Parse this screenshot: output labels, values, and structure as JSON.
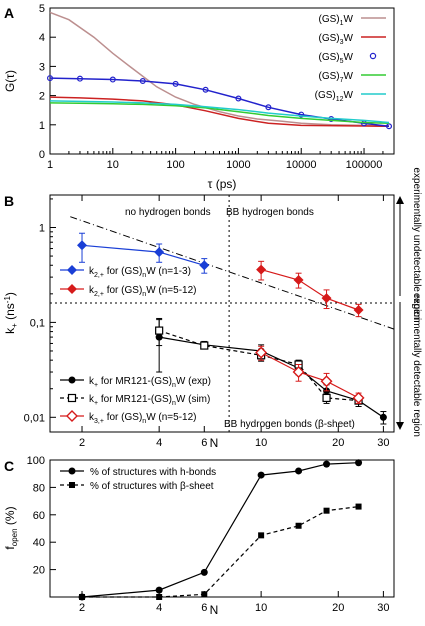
{
  "chart_data": [
    {
      "panel": "A",
      "type": "line",
      "xlabel": "τ (ps)",
      "ylabel": "G(τ)",
      "xscale": "log",
      "xlim": [
        1,
        300000
      ],
      "ylim": [
        0,
        5
      ],
      "x_ticks": [
        "1",
        "10",
        "100",
        "1000",
        "10000",
        "100000"
      ],
      "y_ticks": [
        "0",
        "1",
        "2",
        "3",
        "4",
        "5"
      ],
      "legend_position": "top-right",
      "series": [
        {
          "name": "(GS)1W",
          "name_base": "(GS)",
          "name_sub": "1",
          "name_tail": "W",
          "color": "#bc8f8f",
          "style": "line",
          "x": [
            1,
            2,
            5,
            10,
            20,
            50,
            100,
            200,
            500,
            1000,
            2000,
            5000,
            10000,
            30000,
            100000,
            250000
          ],
          "y": [
            4.85,
            4.6,
            4.0,
            3.45,
            2.95,
            2.3,
            1.95,
            1.7,
            1.45,
            1.3,
            1.2,
            1.12,
            1.05,
            1.0,
            0.98,
            0.97
          ]
        },
        {
          "name": "(GS)3W",
          "name_base": "(GS)",
          "name_sub": "3",
          "name_tail": "W",
          "color": "#cc2222",
          "style": "line",
          "x": [
            1,
            3,
            10,
            30,
            100,
            300,
            1000,
            3000,
            10000,
            100000,
            250000
          ],
          "y": [
            1.95,
            1.92,
            1.88,
            1.82,
            1.68,
            1.48,
            1.22,
            1.05,
            0.98,
            0.96,
            0.95
          ]
        },
        {
          "name": "(GS)5W",
          "name_base": "(GS)",
          "name_sub": "5",
          "name_tail": "W",
          "color": "#2222cc",
          "style": "circles+line",
          "x": [
            1,
            3,
            10,
            30,
            100,
            300,
            1000,
            3000,
            10000,
            30000,
            100000,
            250000
          ],
          "y": [
            2.6,
            2.58,
            2.55,
            2.5,
            2.4,
            2.2,
            1.9,
            1.6,
            1.35,
            1.2,
            1.05,
            0.95
          ]
        },
        {
          "name": "(GS)7W",
          "name_base": "(GS)",
          "name_sub": "7",
          "name_tail": "W",
          "color": "#33cc33",
          "style": "line",
          "x": [
            1,
            3,
            10,
            30,
            100,
            300,
            1000,
            3000,
            10000,
            30000,
            100000,
            250000
          ],
          "y": [
            1.75,
            1.74,
            1.72,
            1.7,
            1.65,
            1.58,
            1.45,
            1.32,
            1.22,
            1.15,
            1.08,
            1.05
          ]
        },
        {
          "name": "(GS)12W",
          "name_base": "(GS)",
          "name_sub": "12",
          "name_tail": "W",
          "color": "#22cccc",
          "style": "line",
          "x": [
            1,
            3,
            10,
            30,
            100,
            300,
            1000,
            3000,
            10000,
            30000,
            100000,
            250000
          ],
          "y": [
            1.82,
            1.8,
            1.78,
            1.75,
            1.7,
            1.62,
            1.52,
            1.4,
            1.3,
            1.22,
            1.15,
            1.08
          ]
        }
      ]
    },
    {
      "panel": "B",
      "type": "scatter",
      "xlabel": "N",
      "ylabel_base": "k",
      "ylabel_sub": "+",
      "ylabel_tail": " (ns",
      "ylabel_sup": "-1",
      "ylabel_end": ")",
      "xscale": "log",
      "yscale": "log",
      "xlim": [
        1.5,
        33
      ],
      "ylim": [
        0.007,
        2.2
      ],
      "x_ticks": [
        "2",
        "4",
        "6",
        "10",
        "20",
        "30"
      ],
      "y_ticks": [
        "0,01",
        "0,1",
        "1"
      ],
      "annotations": {
        "top_left": "no hydrogen bonds",
        "top_right": "BB hydrogen bonds",
        "bottom_right": "BB hydrogen bonds (β-sheet)",
        "side_upper": "experimentally undetectable region",
        "side_lower": "experimentally detectable region"
      },
      "reference_lines": {
        "horizontal_y": 0.16,
        "vertical_x": 7.5,
        "diagonal": {
          "x": [
            1.8,
            33
          ],
          "y": [
            1.3,
            0.085
          ]
        }
      },
      "legend_upper": [
        {
          "base": "k",
          "sub1": "2,+",
          "mid": " for (GS)",
          "sub2": "n",
          "tail": "W (n=1-3)"
        },
        {
          "base": "k",
          "sub1": "2,+",
          "mid": " for (GS)",
          "sub2": "n",
          "tail": "W (n=5-12)"
        }
      ],
      "legend_lower": [
        {
          "base": "k",
          "sub1": "+",
          "mid": " for MR121-(GS)",
          "sub2": "n",
          "tail": "W (exp)"
        },
        {
          "base": "k",
          "sub1": "+",
          "mid": " for MR121-(GS)",
          "sub2": "n",
          "tail": "W (sim)"
        },
        {
          "base": "k",
          "sub1": "3,+",
          "mid": " for (GS)",
          "sub2": "n",
          "tail": "W (n=5-12)"
        }
      ],
      "series": [
        {
          "name": "k2,+ (GS)nW n=1-3",
          "color": "#1a3fd6",
          "marker": "diamond",
          "line": "solid",
          "x": [
            2,
            4,
            6
          ],
          "y": [
            0.65,
            0.55,
            0.4
          ],
          "err": [
            0.22,
            0.12,
            0.07
          ]
        },
        {
          "name": "k2,+ (GS)nW n=5-12",
          "color": "#d61a1a",
          "marker": "diamond",
          "line": "solid",
          "x": [
            10,
            14,
            18,
            24
          ],
          "y": [
            0.36,
            0.28,
            0.18,
            0.135
          ],
          "err": [
            0.08,
            0.05,
            0.04,
            0.02
          ]
        },
        {
          "name": "k+ MR121 exp",
          "color": "#000000",
          "marker": "circle",
          "line": "solid",
          "x": [
            4,
            6,
            10,
            14,
            18,
            24,
            30
          ],
          "y": [
            0.07,
            0.058,
            0.05,
            0.033,
            0.019,
            0.015,
            0.01
          ],
          "err": [
            0.04,
            0.005,
            0.008,
            0.005,
            0.003,
            0.002,
            0.0015
          ]
        },
        {
          "name": "k+ MR121 sim",
          "color": "#000000",
          "marker": "square-open",
          "line": "dashed",
          "x": [
            4,
            6,
            10,
            14,
            18,
            24
          ],
          "y": [
            0.082,
            0.057,
            0.045,
            0.036,
            0.016,
            0.015
          ],
          "err": [
            0.025,
            0.004,
            0.006,
            0.004,
            0.002,
            0.002
          ]
        },
        {
          "name": "k3,+ (GS)nW n=5-12",
          "color": "#d61a1a",
          "marker": "diamond-open",
          "line": "solid",
          "x": [
            10,
            14,
            18,
            24
          ],
          "y": [
            0.048,
            0.03,
            0.024,
            0.016
          ],
          "err": [
            0.008,
            0.006,
            0.005,
            0.002
          ]
        }
      ]
    },
    {
      "panel": "C",
      "type": "line",
      "xlabel": "N",
      "ylabel_base": "f",
      "ylabel_sub": "open",
      "ylabel_tail": " (%)",
      "xscale": "log",
      "xlim": [
        1.5,
        33
      ],
      "ylim": [
        0,
        100
      ],
      "x_ticks": [
        "2",
        "4",
        "6",
        "10",
        "20",
        "30"
      ],
      "y_ticks": [
        "20",
        "40",
        "60",
        "80",
        "100"
      ],
      "legend_position": "top-left",
      "series": [
        {
          "name": "% of structures with h-bonds",
          "color": "#000000",
          "marker": "circle",
          "line": "solid",
          "x": [
            2,
            4,
            6,
            10,
            14,
            18,
            24
          ],
          "y": [
            0,
            5,
            18,
            89,
            92,
            97,
            98
          ]
        },
        {
          "name": "% of structures with β-sheet",
          "color": "#000000",
          "marker": "square",
          "line": "dashed",
          "x": [
            2,
            4,
            6,
            10,
            14,
            18,
            24
          ],
          "y": [
            0,
            0,
            2,
            45,
            52,
            63,
            66
          ]
        }
      ]
    }
  ],
  "panel_letters": [
    "A",
    "B",
    "C"
  ]
}
